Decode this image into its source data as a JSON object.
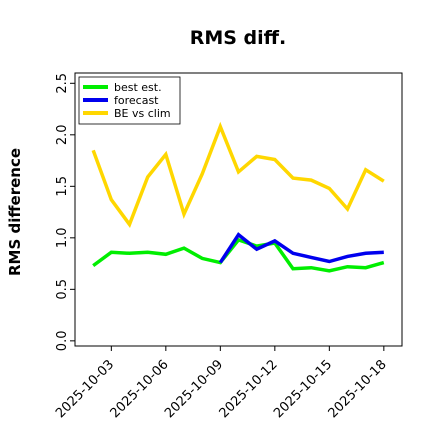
{
  "chart_data": {
    "type": "line",
    "title": "RMS diff.",
    "ylabel": "RMS difference",
    "xlabel": "",
    "ylim": [
      -0.05,
      2.6
    ],
    "y_ticks": [
      0.0,
      0.5,
      1.0,
      1.5,
      2.0,
      2.5
    ],
    "y_tick_labels": [
      "0.0",
      "0.5",
      "1.0",
      "1.5",
      "2.0",
      "2.5"
    ],
    "x": [
      "2025-10-02",
      "2025-10-03",
      "2025-10-04",
      "2025-10-05",
      "2025-10-06",
      "2025-10-07",
      "2025-10-08",
      "2025-10-09",
      "2025-10-10",
      "2025-10-11",
      "2025-10-12",
      "2025-10-13",
      "2025-10-14",
      "2025-10-15",
      "2025-10-16",
      "2025-10-17",
      "2025-10-18"
    ],
    "x_range": [
      "2025-10-01",
      "2025-10-19"
    ],
    "x_ticks": [
      "2025-10-03",
      "2025-10-06",
      "2025-10-09",
      "2025-10-12",
      "2025-10-15",
      "2025-10-18"
    ],
    "highlight_tick": "2025-10-09",
    "highlight_tick_color": "#228b22",
    "grid": false,
    "legend_position": "top-left",
    "series": [
      {
        "name": "best est.",
        "color": "#00ee00",
        "values": [
          0.73,
          0.86,
          0.85,
          0.86,
          0.84,
          0.9,
          0.8,
          0.76,
          0.98,
          0.92,
          0.95,
          0.7,
          0.71,
          0.68,
          0.72,
          0.71,
          0.76
        ]
      },
      {
        "name": "forecast",
        "color": "#0000ee",
        "values": [
          null,
          null,
          null,
          null,
          null,
          null,
          null,
          0.76,
          1.03,
          0.89,
          0.97,
          0.85,
          0.81,
          0.77,
          0.82,
          0.85,
          0.86
        ]
      },
      {
        "name": "BE vs clim",
        "color": "#ffd700",
        "values": [
          1.85,
          1.37,
          1.13,
          1.59,
          1.81,
          1.23,
          1.62,
          2.08,
          1.64,
          1.79,
          1.76,
          1.58,
          1.56,
          1.48,
          1.28,
          1.66,
          1.55
        ]
      }
    ]
  }
}
